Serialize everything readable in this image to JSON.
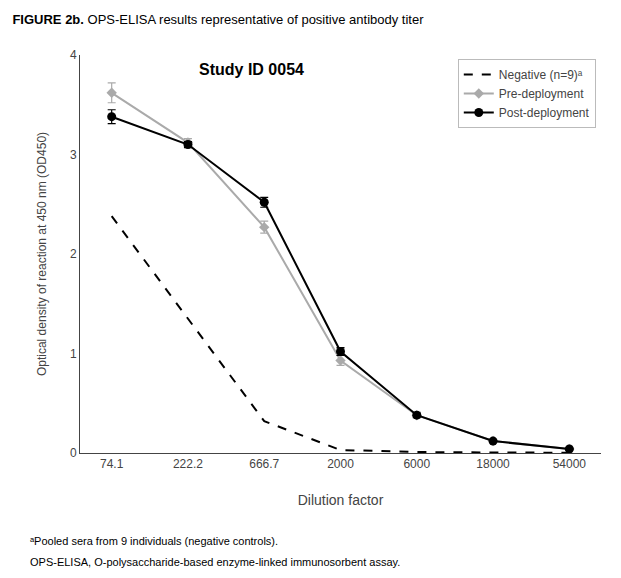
{
  "chart_data": {
    "type": "line",
    "title": "FIGURE 2b.",
    "subtitle": "OPS-ELISA results representative of positive antibody titer",
    "xlabel": "Dilution factor",
    "ylabel": "Optical density of reaction at 450 nm (OD450)",
    "categories": [
      "74.1",
      "222.2",
      "666.7",
      "2000",
      "6000",
      "18000",
      "54000"
    ],
    "series": [
      {
        "name": "Negative (n=9)ᵃ",
        "color": "#000000",
        "line_style": "dash",
        "marker": "none",
        "values": [
          2.38,
          1.35,
          0.32,
          0.03,
          0.01,
          0.005,
          0.003
        ]
      },
      {
        "name": "Pre-deployment",
        "color": "#aaaaaa",
        "line_style": "solid",
        "marker": "diamond",
        "values": [
          3.62,
          3.12,
          2.27,
          0.93,
          0.38,
          0.12,
          0.04
        ],
        "error": [
          0.1,
          0.04,
          0.06,
          0.05,
          0.03,
          0.02,
          0.01
        ]
      },
      {
        "name": "Post-deployment",
        "color": "#000000",
        "line_style": "solid",
        "marker": "circle",
        "values": [
          3.38,
          3.1,
          2.52,
          1.02,
          0.38,
          0.12,
          0.04
        ],
        "error": [
          0.07,
          0.03,
          0.05,
          0.04,
          0.02,
          0.01,
          0.005
        ]
      }
    ],
    "ylim": [
      0,
      4
    ],
    "yticks": [
      0,
      1,
      2,
      3,
      4
    ],
    "grid": false,
    "legend": "upper right",
    "annotations": [
      "Study ID 0054",
      "ᵃPooled sera from 9 individuals (negative controls).",
      "OPS-ELISA, O-polysaccharide-based enzyme-linked immunosorbent assay."
    ]
  }
}
